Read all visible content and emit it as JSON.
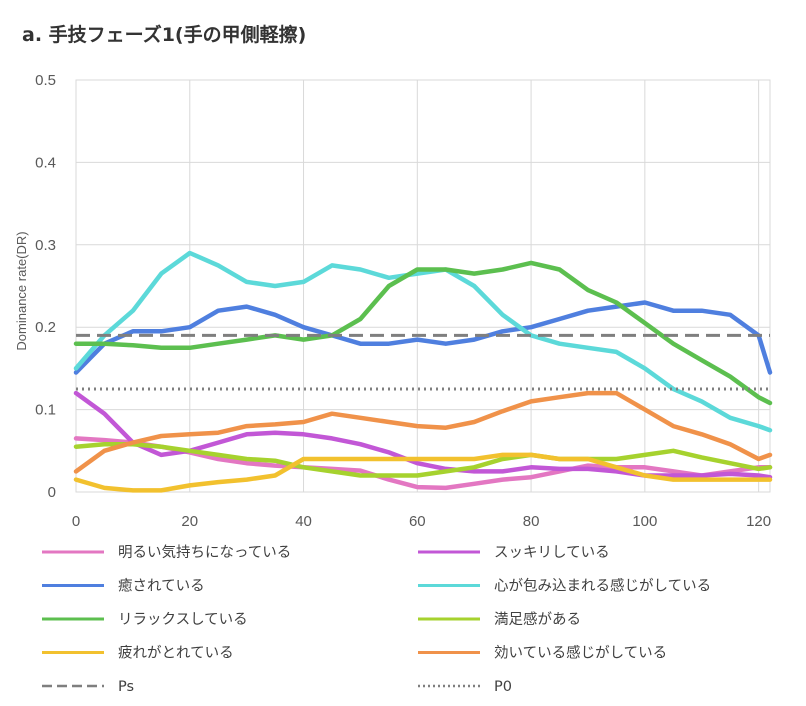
{
  "chart_data": {
    "type": "line",
    "title": "a. 手技フェーズ1(手の甲側軽擦)",
    "xlabel": "",
    "ylabel": "Dominance rate(DR)",
    "xlim": [
      0,
      122
    ],
    "ylim": [
      0,
      0.5
    ],
    "xticks": [
      "0",
      "20",
      "40",
      "60",
      "80",
      "100",
      "120"
    ],
    "yticks": [
      "0",
      "0.1",
      "0.2",
      "0.3",
      "0.4",
      "0.5"
    ],
    "grid": true,
    "legend_position": "bottom",
    "x": [
      0,
      5,
      10,
      15,
      20,
      25,
      30,
      35,
      40,
      45,
      50,
      55,
      60,
      65,
      70,
      75,
      80,
      85,
      90,
      95,
      100,
      105,
      110,
      115,
      120,
      122
    ],
    "series": [
      {
        "name": "明るい気持ちになっている",
        "color": "#e377c2",
        "dash": "solid",
        "values": [
          0.065,
          0.063,
          0.06,
          0.055,
          0.048,
          0.04,
          0.035,
          0.032,
          0.03,
          0.028,
          0.026,
          0.015,
          0.006,
          0.005,
          0.01,
          0.015,
          0.018,
          0.025,
          0.032,
          0.03,
          0.03,
          0.025,
          0.02,
          0.025,
          0.03,
          0.03
        ]
      },
      {
        "name": "スッキリしている",
        "color": "#c257d6",
        "dash": "solid",
        "values": [
          0.12,
          0.095,
          0.06,
          0.045,
          0.05,
          0.06,
          0.07,
          0.072,
          0.07,
          0.065,
          0.058,
          0.048,
          0.035,
          0.028,
          0.025,
          0.025,
          0.03,
          0.028,
          0.028,
          0.025,
          0.02,
          0.02,
          0.02,
          0.022,
          0.02,
          0.018
        ]
      },
      {
        "name": "癒されている",
        "color": "#4f7fdf",
        "dash": "solid",
        "values": [
          0.145,
          0.18,
          0.195,
          0.195,
          0.2,
          0.22,
          0.225,
          0.215,
          0.2,
          0.19,
          0.18,
          0.18,
          0.185,
          0.18,
          0.185,
          0.195,
          0.2,
          0.21,
          0.22,
          0.225,
          0.23,
          0.22,
          0.22,
          0.215,
          0.19,
          0.145
        ]
      },
      {
        "name": "心が包み込まれる感じがしている",
        "color": "#5cd9d9",
        "dash": "solid",
        "values": [
          0.15,
          0.19,
          0.22,
          0.265,
          0.29,
          0.275,
          0.255,
          0.25,
          0.255,
          0.275,
          0.27,
          0.26,
          0.265,
          0.27,
          0.25,
          0.215,
          0.19,
          0.18,
          0.175,
          0.17,
          0.15,
          0.125,
          0.11,
          0.09,
          0.08,
          0.075
        ]
      },
      {
        "name": "リラックスしている",
        "color": "#5cbf4f",
        "dash": "solid",
        "values": [
          0.18,
          0.18,
          0.178,
          0.175,
          0.175,
          0.18,
          0.185,
          0.19,
          0.185,
          0.19,
          0.21,
          0.25,
          0.27,
          0.27,
          0.265,
          0.27,
          0.278,
          0.27,
          0.245,
          0.23,
          0.205,
          0.18,
          0.16,
          0.14,
          0.115,
          0.108
        ]
      },
      {
        "name": "満足感がある",
        "color": "#a6d22e",
        "dash": "solid",
        "values": [
          0.055,
          0.058,
          0.058,
          0.055,
          0.05,
          0.045,
          0.04,
          0.038,
          0.03,
          0.025,
          0.02,
          0.02,
          0.02,
          0.025,
          0.03,
          0.04,
          0.045,
          0.04,
          0.04,
          0.04,
          0.045,
          0.05,
          0.042,
          0.035,
          0.028,
          0.03
        ]
      },
      {
        "name": "疲れがとれている",
        "color": "#f2c12e",
        "dash": "solid",
        "values": [
          0.015,
          0.005,
          0.002,
          0.002,
          0.008,
          0.012,
          0.015,
          0.02,
          0.04,
          0.04,
          0.04,
          0.04,
          0.04,
          0.04,
          0.04,
          0.045,
          0.045,
          0.04,
          0.04,
          0.03,
          0.02,
          0.015,
          0.015,
          0.015,
          0.015,
          0.015
        ]
      },
      {
        "name": "効いている感じがしている",
        "color": "#f0924a",
        "dash": "solid",
        "values": [
          0.025,
          0.05,
          0.06,
          0.068,
          0.07,
          0.072,
          0.08,
          0.082,
          0.085,
          0.095,
          0.09,
          0.085,
          0.08,
          0.078,
          0.085,
          0.098,
          0.11,
          0.115,
          0.12,
          0.12,
          0.1,
          0.08,
          0.07,
          0.058,
          0.04,
          0.045
        ]
      },
      {
        "name": "Ps",
        "color": "#7f7f7f",
        "dash": "dashed",
        "values": [
          0.19,
          0.19,
          0.19,
          0.19,
          0.19,
          0.19,
          0.19,
          0.19,
          0.19,
          0.19,
          0.19,
          0.19,
          0.19,
          0.19,
          0.19,
          0.19,
          0.19,
          0.19,
          0.19,
          0.19,
          0.19,
          0.19,
          0.19,
          0.19,
          0.19,
          0.19
        ]
      },
      {
        "name": "P0",
        "color": "#7f7f7f",
        "dash": "dotted",
        "values": [
          0.125,
          0.125,
          0.125,
          0.125,
          0.125,
          0.125,
          0.125,
          0.125,
          0.125,
          0.125,
          0.125,
          0.125,
          0.125,
          0.125,
          0.125,
          0.125,
          0.125,
          0.125,
          0.125,
          0.125,
          0.125,
          0.125,
          0.125,
          0.125,
          0.125,
          0.125
        ]
      }
    ]
  }
}
